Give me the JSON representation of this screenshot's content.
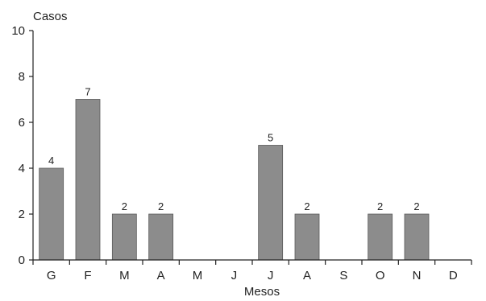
{
  "chart_data": {
    "type": "bar",
    "title": "",
    "xlabel": "Mesos",
    "ylabel": "Casos",
    "categories": [
      "G",
      "F",
      "M",
      "A",
      "M",
      "J",
      "J",
      "A",
      "S",
      "O",
      "N",
      "D"
    ],
    "values": [
      4,
      7,
      2,
      2,
      0,
      0,
      5,
      2,
      0,
      2,
      2,
      0
    ],
    "data_labels": [
      "4",
      "7",
      "2",
      "2",
      "",
      "",
      "5",
      "2",
      "",
      "2",
      "2",
      ""
    ],
    "ylim": [
      0,
      10
    ],
    "yticks": [
      0,
      2,
      4,
      6,
      8,
      10
    ],
    "grid": false,
    "bar_color": "#8c8c8c",
    "bar_border_color": "#5a5a5a"
  }
}
